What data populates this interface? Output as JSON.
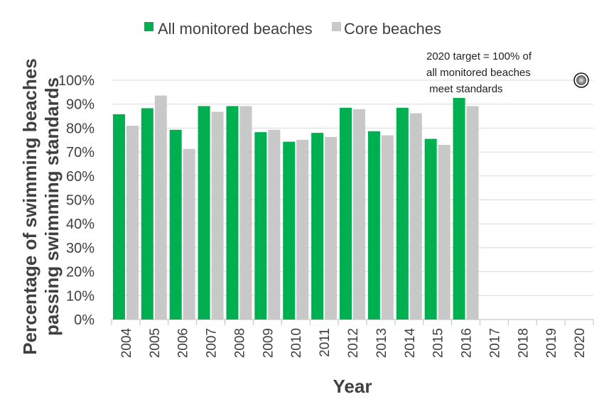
{
  "chart_data": {
    "type": "bar",
    "title": "",
    "xlabel": "Year",
    "ylabel_lines": [
      "Percentage of swimming beaches",
      "passing swimming standards"
    ],
    "categories": [
      "2004",
      "2005",
      "2006",
      "2007",
      "2008",
      "2009",
      "2010",
      "2011",
      "2012",
      "2013",
      "2014",
      "2015",
      "2016",
      "2017",
      "2018",
      "2019",
      "2020"
    ],
    "series": [
      {
        "name": "All monitored beaches",
        "color": "#00b050",
        "values": [
          85.8,
          88.3,
          79.3,
          89.2,
          89.2,
          78.3,
          74.3,
          78.0,
          88.5,
          78.7,
          88.5,
          75.5,
          92.6,
          null,
          null,
          null,
          null
        ]
      },
      {
        "name": "Core beaches",
        "color": "#c8c8c8",
        "values": [
          81.0,
          93.6,
          71.3,
          86.8,
          89.2,
          79.3,
          75.1,
          76.3,
          87.9,
          77.0,
          86.2,
          73.0,
          89.2,
          null,
          null,
          null,
          null
        ]
      }
    ],
    "y_ticks": [
      "0%",
      "10%",
      "20%",
      "30%",
      "40%",
      "50%",
      "60%",
      "70%",
      "80%",
      "90%",
      "100%"
    ],
    "ylim": [
      0,
      100
    ],
    "grid": true,
    "legend_position": "top-center",
    "target": {
      "category": "2020",
      "value": 100,
      "annotation_lines": [
        "2020 target = 100% of",
        "all monitored beaches",
        " meet standards"
      ],
      "marker_color": "#555555"
    }
  }
}
